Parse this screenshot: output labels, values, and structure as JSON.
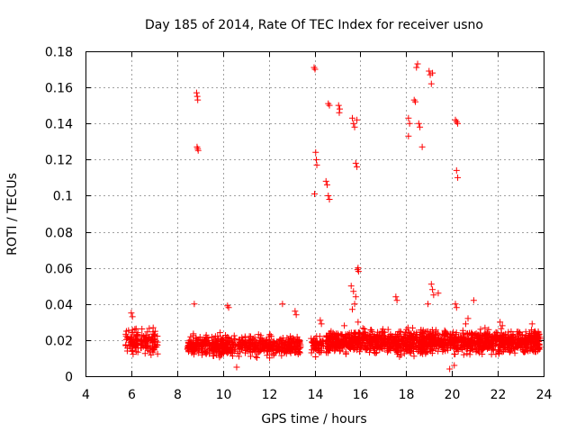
{
  "chart_data": {
    "type": "scatter",
    "title": "Day 185 of 2014, Rate Of TEC Index for receiver usno",
    "xlabel": "GPS time / hours",
    "ylabel": "ROTI / TECUs",
    "xlim": [
      4,
      24
    ],
    "ylim": [
      0,
      0.18
    ],
    "xticks": [
      4,
      6,
      8,
      10,
      12,
      14,
      16,
      18,
      20,
      22,
      24
    ],
    "yticks": [
      0,
      0.02,
      0.04,
      0.06,
      0.08,
      0.1,
      0.12,
      0.14,
      0.16,
      0.18
    ],
    "xtick_labels": [
      "4",
      "6",
      "8",
      "10",
      "12",
      "14",
      "16",
      "18",
      "20",
      "22",
      "24"
    ],
    "ytick_labels": [
      "0",
      "0.02",
      "0.04",
      "0.06",
      "0.08",
      "0.1",
      "0.12",
      "0.14",
      "0.16",
      "0.18"
    ],
    "grid": true,
    "marker": "+",
    "color": "#ff0000",
    "series": [
      {
        "name": "ROTI",
        "points": [
          [
            8.85,
            0.157
          ],
          [
            8.88,
            0.155
          ],
          [
            8.9,
            0.153
          ],
          [
            8.87,
            0.127
          ],
          [
            8.9,
            0.126
          ],
          [
            8.92,
            0.125
          ],
          [
            13.98,
            0.171
          ],
          [
            14.02,
            0.17
          ],
          [
            14.05,
            0.124
          ],
          [
            14.08,
            0.12
          ],
          [
            14.1,
            0.117
          ],
          [
            14.0,
            0.101
          ],
          [
            14.5,
            0.108
          ],
          [
            14.55,
            0.106
          ],
          [
            14.6,
            0.1
          ],
          [
            14.65,
            0.098
          ],
          [
            14.6,
            0.151
          ],
          [
            14.65,
            0.15
          ],
          [
            15.05,
            0.15
          ],
          [
            15.1,
            0.148
          ],
          [
            15.08,
            0.146
          ],
          [
            15.65,
            0.143
          ],
          [
            15.7,
            0.14
          ],
          [
            15.75,
            0.138
          ],
          [
            15.85,
            0.142
          ],
          [
            15.8,
            0.118
          ],
          [
            15.85,
            0.116
          ],
          [
            15.9,
            0.06
          ],
          [
            15.92,
            0.058
          ],
          [
            15.88,
            0.059
          ],
          [
            18.1,
            0.143
          ],
          [
            18.15,
            0.14
          ],
          [
            18.1,
            0.133
          ],
          [
            18.35,
            0.153
          ],
          [
            18.4,
            0.152
          ],
          [
            18.45,
            0.171
          ],
          [
            18.5,
            0.173
          ],
          [
            18.55,
            0.14
          ],
          [
            18.6,
            0.138
          ],
          [
            18.7,
            0.127
          ],
          [
            19.0,
            0.169
          ],
          [
            19.05,
            0.167
          ],
          [
            19.1,
            0.162
          ],
          [
            19.15,
            0.168
          ],
          [
            20.15,
            0.142
          ],
          [
            20.2,
            0.141
          ],
          [
            20.25,
            0.14
          ],
          [
            20.2,
            0.114
          ],
          [
            20.25,
            0.11
          ],
          [
            15.6,
            0.05
          ],
          [
            15.7,
            0.047
          ],
          [
            15.8,
            0.044
          ],
          [
            15.75,
            0.04
          ],
          [
            15.65,
            0.037
          ],
          [
            19.1,
            0.051
          ],
          [
            19.15,
            0.048
          ],
          [
            19.2,
            0.045
          ],
          [
            19.4,
            0.046
          ],
          [
            17.55,
            0.044
          ],
          [
            17.6,
            0.042
          ],
          [
            18.95,
            0.04
          ],
          [
            20.15,
            0.04
          ],
          [
            20.2,
            0.038
          ],
          [
            20.95,
            0.042
          ],
          [
            12.6,
            0.04
          ],
          [
            10.2,
            0.039
          ],
          [
            10.25,
            0.038
          ],
          [
            8.75,
            0.04
          ],
          [
            13.15,
            0.036
          ],
          [
            13.2,
            0.034
          ],
          [
            6.0,
            0.035
          ],
          [
            6.05,
            0.033
          ],
          [
            14.25,
            0.031
          ],
          [
            14.3,
            0.029
          ],
          [
            15.3,
            0.028
          ],
          [
            20.6,
            0.029
          ],
          [
            20.7,
            0.032
          ],
          [
            22.1,
            0.03
          ],
          [
            22.2,
            0.028
          ],
          [
            23.5,
            0.029
          ],
          [
            15.9,
            0.03
          ],
          [
            20.1,
            0.006
          ],
          [
            19.9,
            0.004
          ],
          [
            10.6,
            0.005
          ]
        ]
      }
    ],
    "clusters": [
      {
        "x_range": [
          5.75,
          7.15
        ],
        "y_mean": 0.019,
        "y_spread": 0.008,
        "count": 150,
        "x_gaps": [
          [
            6.3,
            6.4
          ]
        ]
      },
      {
        "x_range": [
          8.45,
          13.4
        ],
        "y_mean": 0.017,
        "y_spread": 0.007,
        "count": 620,
        "x_gaps": [
          [
            10.55,
            10.6
          ]
        ]
      },
      {
        "x_range": [
          13.85,
          14.4
        ],
        "y_mean": 0.017,
        "y_spread": 0.007,
        "count": 55
      },
      {
        "x_range": [
          14.5,
          23.85
        ],
        "y_mean": 0.019,
        "y_spread": 0.008,
        "count": 1500
      }
    ]
  }
}
